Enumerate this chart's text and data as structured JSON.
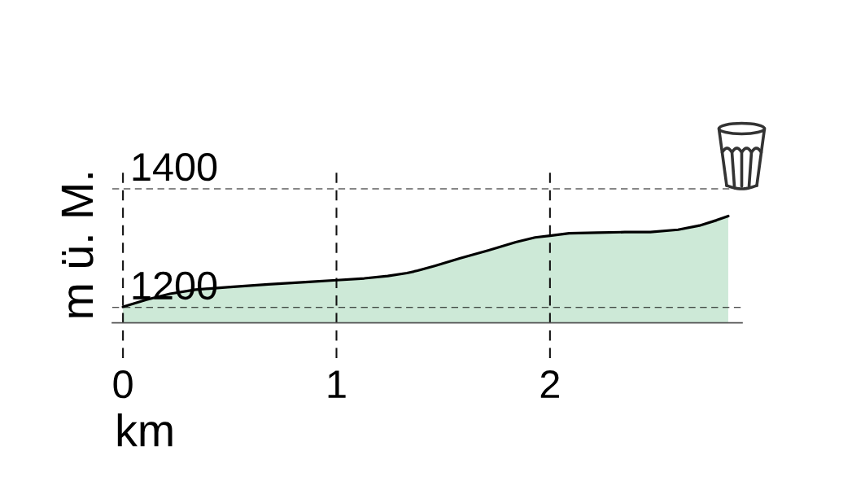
{
  "chart_data": {
    "type": "area",
    "xlabel": "km",
    "ylabel": "m ü. M.",
    "x": [
      0,
      0.11,
      0.22,
      0.34,
      0.49,
      0.68,
      0.87,
      1.0,
      1.13,
      1.24,
      1.33,
      1.38,
      1.46,
      1.58,
      1.71,
      1.84,
      1.93,
      2.0,
      2.09,
      2.22,
      2.35,
      2.47,
      2.6,
      2.7,
      2.78,
      2.835
    ],
    "values": [
      1201,
      1213,
      1223,
      1230,
      1234,
      1239,
      1243,
      1246,
      1249,
      1253,
      1258,
      1262,
      1270,
      1283,
      1296,
      1310,
      1318,
      1321,
      1325,
      1326,
      1327,
      1327,
      1331,
      1338,
      1347,
      1354
    ],
    "color": "#cde9d7",
    "xlim": [
      -0.05,
      2.9
    ],
    "ylim": [
      1174,
      1437
    ],
    "xticks": [
      0,
      1,
      2
    ],
    "yticks": [
      1200,
      1400
    ],
    "grid": true
  }
}
